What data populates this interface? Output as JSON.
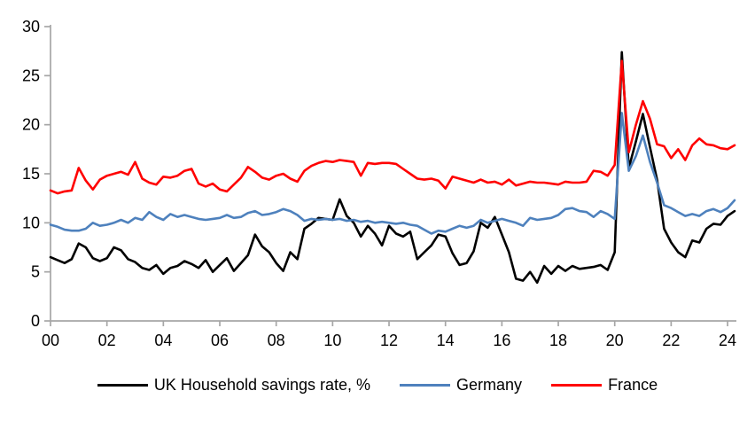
{
  "chart_data": {
    "type": "line",
    "title": "",
    "xlabel": "",
    "ylabel": "",
    "ylim": [
      0,
      30
    ],
    "grid": false,
    "legend_position": "bottom",
    "background_color": "#ffffff",
    "axis_color": "#a6a6a6",
    "text_color": "#000000",
    "x_start_year": 2000,
    "x_step_years": 0.25,
    "y_ticks": [
      0,
      5,
      10,
      15,
      20,
      25,
      30
    ],
    "y_tick_labels": [
      "0",
      "5",
      "10",
      "15",
      "20",
      "25",
      "30"
    ],
    "x_tick_years": [
      0,
      2,
      4,
      6,
      8,
      10,
      12,
      14,
      16,
      18,
      20,
      22,
      24
    ],
    "x_tick_labels": [
      "00",
      "02",
      "04",
      "06",
      "08",
      "10",
      "12",
      "14",
      "16",
      "18",
      "20",
      "22",
      "24"
    ],
    "series": [
      {
        "name": "UK Household savings rate, %",
        "color": "#000000",
        "values": [
          6.5,
          6.2,
          5.9,
          6.3,
          7.9,
          7.5,
          6.4,
          6.1,
          6.4,
          7.5,
          7.2,
          6.3,
          6.0,
          5.4,
          5.2,
          5.7,
          4.8,
          5.4,
          5.6,
          6.1,
          5.8,
          5.4,
          6.2,
          5.0,
          5.7,
          6.4,
          5.1,
          5.9,
          6.7,
          8.8,
          7.6,
          7.0,
          5.9,
          5.1,
          7.0,
          6.3,
          9.4,
          9.9,
          10.5,
          10.4,
          10.3,
          12.4,
          10.7,
          10.0,
          8.6,
          9.7,
          8.9,
          7.7,
          9.7,
          8.9,
          8.6,
          9.1,
          6.3,
          7.0,
          7.7,
          8.8,
          8.6,
          6.9,
          5.7,
          5.9,
          7.1,
          10.0,
          9.5,
          10.6,
          8.8,
          7.0,
          4.3,
          4.1,
          5.0,
          3.9,
          5.6,
          4.8,
          5.6,
          5.1,
          5.6,
          5.3,
          5.4,
          5.5,
          5.7,
          5.2,
          7.0,
          27.4,
          15.6,
          18.3,
          21.1,
          17.7,
          14.4,
          9.4,
          8.0,
          7.0,
          6.5,
          8.2,
          8.0,
          9.4,
          9.9,
          9.8,
          10.7,
          11.2
        ]
      },
      {
        "name": "Germany",
        "color": "#4e81bd",
        "values": [
          9.8,
          9.6,
          9.3,
          9.2,
          9.2,
          9.4,
          10.0,
          9.7,
          9.8,
          10.0,
          10.3,
          10.0,
          10.5,
          10.3,
          11.1,
          10.6,
          10.3,
          10.9,
          10.6,
          10.8,
          10.6,
          10.4,
          10.3,
          10.4,
          10.5,
          10.8,
          10.5,
          10.6,
          11.0,
          11.2,
          10.8,
          10.9,
          11.1,
          11.4,
          11.2,
          10.8,
          10.2,
          10.4,
          10.3,
          10.4,
          10.3,
          10.4,
          10.2,
          10.3,
          10.1,
          10.2,
          10.0,
          10.1,
          10.0,
          9.9,
          10.0,
          9.8,
          9.7,
          9.3,
          8.9,
          9.2,
          9.1,
          9.4,
          9.7,
          9.5,
          9.7,
          10.3,
          10.0,
          10.2,
          10.4,
          10.2,
          10.0,
          9.7,
          10.5,
          10.3,
          10.4,
          10.5,
          10.8,
          11.4,
          11.5,
          11.2,
          11.1,
          10.6,
          11.2,
          10.9,
          10.4,
          21.2,
          15.3,
          16.8,
          18.9,
          16.2,
          14.1,
          11.8,
          11.5,
          11.1,
          10.7,
          10.9,
          10.7,
          11.2,
          11.4,
          11.1,
          11.5,
          12.3
        ]
      },
      {
        "name": "France",
        "color": "#ff0000",
        "values": [
          13.3,
          13.0,
          13.2,
          13.3,
          15.6,
          14.3,
          13.4,
          14.4,
          14.8,
          15.0,
          15.2,
          14.9,
          16.2,
          14.5,
          14.1,
          13.9,
          14.7,
          14.6,
          14.8,
          15.3,
          15.5,
          14.0,
          13.7,
          14.0,
          13.4,
          13.2,
          13.9,
          14.6,
          15.7,
          15.2,
          14.6,
          14.4,
          14.8,
          15.0,
          14.5,
          14.2,
          15.3,
          15.8,
          16.1,
          16.3,
          16.2,
          16.4,
          16.3,
          16.2,
          14.8,
          16.1,
          16.0,
          16.1,
          16.1,
          16.0,
          15.5,
          15.0,
          14.5,
          14.4,
          14.5,
          14.3,
          13.5,
          14.7,
          14.5,
          14.3,
          14.1,
          14.4,
          14.1,
          14.2,
          13.9,
          14.4,
          13.8,
          14.0,
          14.2,
          14.1,
          14.1,
          14.0,
          13.9,
          14.2,
          14.1,
          14.1,
          14.2,
          15.3,
          15.2,
          14.8,
          15.9,
          26.5,
          17.2,
          20.0,
          22.4,
          20.6,
          18.0,
          17.8,
          16.6,
          17.5,
          16.4,
          17.9,
          18.6,
          18.0,
          17.9,
          17.6,
          17.5,
          17.9
        ]
      }
    ]
  }
}
